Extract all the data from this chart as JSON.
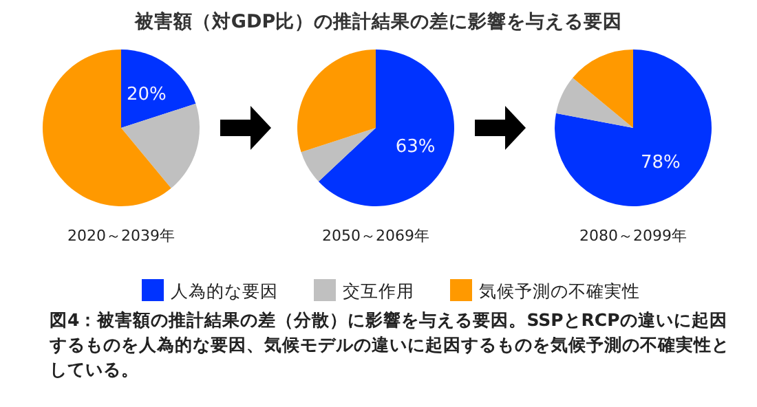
{
  "chart_data": [
    {
      "type": "pie",
      "title": "被害額（対GDP比）の推計結果の差に影響を与える要因",
      "xlabel": "2020～2039年",
      "categories": [
        "人為的な要因",
        "交互作用",
        "気候予測の不確実性"
      ],
      "values": [
        20,
        19,
        61
      ],
      "colors": [
        "#0033ff",
        "#c0c0c0",
        "#ff9900"
      ],
      "value_labels": [
        "20%",
        null,
        null
      ],
      "legend": "bottom",
      "annotations": [
        "図4：被害額の推計結果の差（分散）に影響を与える要因。SSPとRCPの違いに起因するものを人為的な要因、気候モデルの違いに起因するものを気候予測の不確実性としている。"
      ]
    },
    {
      "type": "pie",
      "xlabel": "2050～2069年",
      "categories": [
        null,
        null,
        null
      ],
      "values": [
        63,
        7,
        30
      ],
      "colors": [
        "#0033ff",
        "#c0c0c0",
        "#ff9900"
      ],
      "value_labels": [
        "63%",
        null,
        null
      ]
    },
    {
      "type": "pie",
      "xlabel": "2080～2099年",
      "categories": [
        null,
        null,
        null
      ],
      "values": [
        78,
        8,
        14
      ],
      "colors": [
        "#0033ff",
        "#c0c0c0",
        "#ff9900"
      ],
      "value_labels": [
        "78%",
        null,
        null
      ]
    }
  ]
}
